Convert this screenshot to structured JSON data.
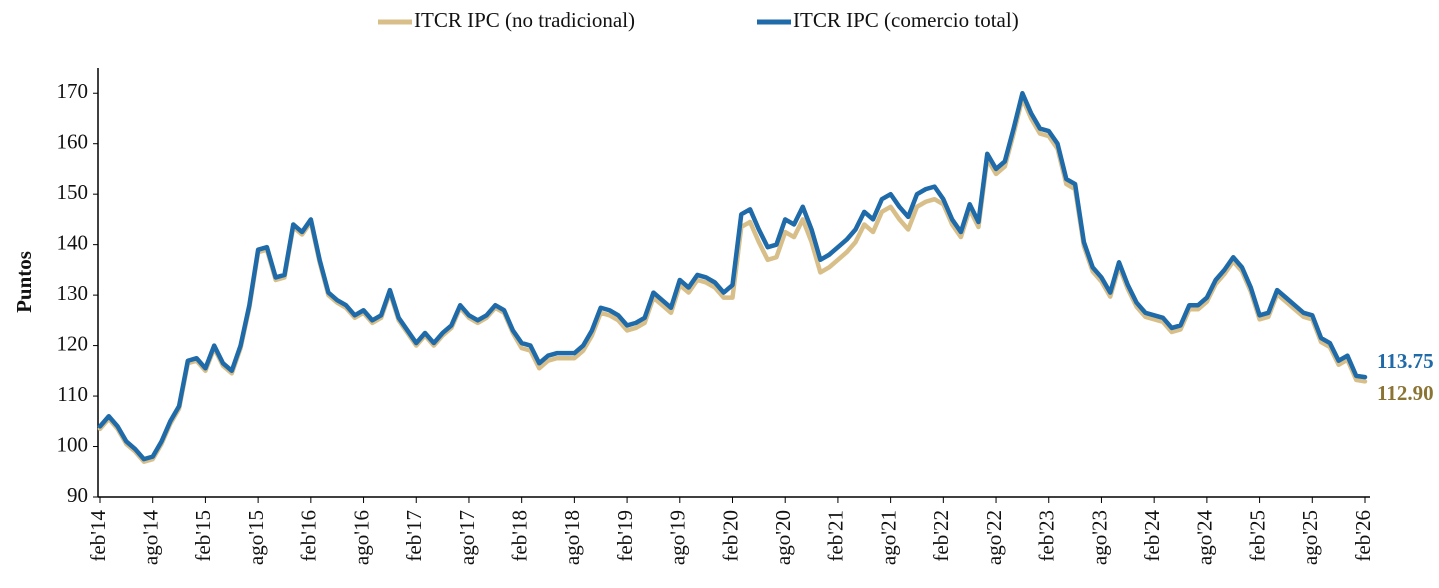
{
  "chart_data": {
    "type": "line",
    "y_label": "Puntos",
    "categories": [
      "feb'14",
      null,
      null,
      null,
      null,
      null,
      "ago'14",
      null,
      null,
      null,
      null,
      null,
      "feb'15",
      null,
      null,
      null,
      null,
      null,
      "ago'15",
      null,
      null,
      null,
      null,
      null,
      "feb'16",
      null,
      null,
      null,
      null,
      null,
      "ago'16",
      null,
      null,
      null,
      null,
      null,
      "feb'17",
      null,
      null,
      null,
      null,
      null,
      "ago'17",
      null,
      null,
      null,
      null,
      null,
      "feb'18",
      null,
      null,
      null,
      null,
      null,
      "ago'18",
      null,
      null,
      null,
      null,
      null,
      "feb'19",
      null,
      null,
      null,
      null,
      null,
      "ago'19",
      null,
      null,
      null,
      null,
      null,
      "feb'20",
      null,
      null,
      null,
      null,
      null,
      "ago'20",
      null,
      null,
      null,
      null,
      null,
      "feb'21",
      null,
      null,
      null,
      null,
      null,
      "ago'21",
      null,
      null,
      null,
      null,
      null,
      "feb'22",
      null,
      null,
      null,
      null,
      null,
      "ago'22",
      null,
      null,
      null,
      null,
      null,
      "feb'23",
      null,
      null,
      null,
      null,
      null,
      "ago'23",
      null,
      null,
      null,
      null,
      null,
      "feb'24",
      null,
      null,
      null,
      null,
      null,
      "ago'24",
      null,
      null,
      null,
      null,
      null,
      "feb'25",
      null,
      null,
      null,
      null,
      null,
      "ago'25",
      null,
      null,
      null,
      null,
      null,
      "feb'26"
    ],
    "series": [
      {
        "name": "ITCR IPC (no tradicional)",
        "color": "#d8bf8a",
        "label_color": "#8a7434",
        "values": [
          103.5,
          105.5,
          103.5,
          100.5,
          99,
          97,
          97.5,
          100.5,
          104.5,
          107.5,
          116.5,
          117,
          115,
          119.5,
          116,
          114.5,
          119.5,
          127.5,
          138.5,
          139,
          133,
          133.5,
          143.5,
          142,
          144.5,
          136.5,
          130,
          128.5,
          127.5,
          125.5,
          126.5,
          124.5,
          125.5,
          130.5,
          125,
          122.5,
          120,
          122,
          120,
          122,
          123.5,
          127.5,
          125.5,
          124.5,
          125.5,
          127.5,
          126.5,
          122.5,
          119.5,
          119,
          115.5,
          117,
          117.5,
          117.5,
          117.5,
          119,
          122,
          126.5,
          126,
          125,
          123,
          123.5,
          124.5,
          129.5,
          128,
          126.5,
          132,
          130.5,
          133,
          132.5,
          131.5,
          129.5,
          129.5,
          143.5,
          144.5,
          140.5,
          137,
          137.5,
          142.5,
          141.5,
          145,
          140.5,
          134.5,
          135.5,
          137,
          138.5,
          140.5,
          144,
          142.5,
          146.5,
          147.5,
          145,
          143,
          147.5,
          148.5,
          149,
          148,
          144,
          141.5,
          147,
          143.5,
          157,
          154,
          155.5,
          162,
          169,
          165,
          162,
          161.5,
          159,
          152,
          151,
          139.7,
          134.7,
          132.7,
          129.7,
          135.7,
          131.2,
          127.7,
          125.7,
          125.2,
          124.7,
          122.7,
          123.2,
          127.2,
          127.2,
          128.7,
          132.2,
          134.2,
          136.7,
          134.7,
          130.7,
          125.2,
          125.7,
          130.2,
          128.7,
          127.2,
          125.7,
          125.2,
          120.7,
          119.7,
          116.2,
          117.2,
          113.2,
          112.9
        ],
        "value_labels": [
          null,
          null,
          null,
          null,
          null,
          null,
          null,
          null,
          null,
          null,
          null,
          null,
          null,
          null,
          null,
          null,
          null,
          null,
          null,
          null,
          null,
          null,
          null,
          null,
          null,
          null,
          null,
          null,
          null,
          null,
          null,
          null,
          null,
          null,
          null,
          null,
          null,
          null,
          null,
          null,
          null,
          null,
          null,
          null,
          null,
          null,
          null,
          null,
          null,
          null,
          null,
          null,
          null,
          null,
          null,
          null,
          null,
          null,
          null,
          null,
          null,
          null,
          null,
          null,
          null,
          null,
          null,
          null,
          null,
          null,
          null,
          null,
          null,
          null,
          null,
          null,
          null,
          null,
          null,
          null,
          null,
          null,
          null,
          null,
          null,
          null,
          null,
          null,
          null,
          null,
          null,
          null,
          null,
          null,
          null,
          null,
          null,
          null,
          null,
          null,
          null,
          null,
          null,
          null,
          null,
          null,
          null,
          null,
          null,
          null,
          null,
          null,
          null,
          null,
          null,
          null,
          null,
          null,
          null,
          null,
          null,
          null,
          null,
          null,
          null,
          null,
          null,
          null,
          null,
          null,
          null,
          null,
          null,
          null,
          null,
          null,
          null,
          null,
          null,
          null,
          null,
          null,
          null,
          null,
          "112.90"
        ]
      },
      {
        "name": "ITCR IPC (comercio total)",
        "color": "#1f6aa8",
        "label_color": "#1f6aa8",
        "values": [
          104,
          106,
          104,
          101,
          99.5,
          97.5,
          98,
          101,
          105,
          108,
          117,
          117.5,
          115.5,
          120,
          116.5,
          115,
          120,
          128,
          139,
          139.5,
          133.5,
          134,
          144,
          142.5,
          145,
          137,
          130.5,
          129,
          128,
          126,
          127,
          125,
          126,
          131,
          125.5,
          123,
          120.5,
          122.5,
          120.5,
          122.5,
          124,
          128,
          126,
          125,
          126,
          128,
          127,
          123,
          120.5,
          120,
          116.5,
          118,
          118.5,
          118.5,
          118.5,
          120,
          123,
          127.5,
          127,
          126,
          124,
          124.5,
          125.5,
          130.5,
          129,
          127.5,
          133,
          131.5,
          134,
          133.5,
          132.5,
          130.5,
          132,
          146,
          147,
          143,
          139.5,
          140,
          145,
          144,
          147.5,
          143,
          137,
          138,
          139.5,
          141,
          143,
          146.5,
          145,
          149,
          150,
          147.5,
          145.5,
          150,
          151,
          151.5,
          149,
          145,
          142.5,
          148,
          144.5,
          158,
          155,
          156.5,
          163,
          170,
          166,
          163,
          162.5,
          160,
          153,
          152,
          140.5,
          135.5,
          133.5,
          130.5,
          136.5,
          132,
          128.5,
          126.5,
          126,
          125.5,
          123.5,
          124,
          128,
          128,
          129.5,
          133,
          135,
          137.5,
          135.5,
          131.5,
          126,
          126.5,
          131,
          129.5,
          128,
          126.5,
          126,
          121.5,
          120.5,
          117,
          118,
          114,
          113.75
        ],
        "value_labels": [
          null,
          null,
          null,
          null,
          null,
          null,
          null,
          null,
          null,
          null,
          null,
          null,
          null,
          null,
          null,
          null,
          null,
          null,
          null,
          null,
          null,
          null,
          null,
          null,
          null,
          null,
          null,
          null,
          null,
          null,
          null,
          null,
          null,
          null,
          null,
          null,
          null,
          null,
          null,
          null,
          null,
          null,
          null,
          null,
          null,
          null,
          null,
          null,
          null,
          null,
          null,
          null,
          null,
          null,
          null,
          null,
          null,
          null,
          null,
          null,
          null,
          null,
          null,
          null,
          null,
          null,
          null,
          null,
          null,
          null,
          null,
          null,
          null,
          null,
          null,
          null,
          null,
          null,
          null,
          null,
          null,
          null,
          null,
          null,
          null,
          null,
          null,
          null,
          null,
          null,
          null,
          null,
          null,
          null,
          null,
          null,
          null,
          null,
          null,
          null,
          null,
          null,
          null,
          null,
          null,
          null,
          null,
          null,
          null,
          null,
          null,
          null,
          null,
          null,
          null,
          null,
          null,
          null,
          null,
          null,
          null,
          null,
          null,
          null,
          null,
          null,
          null,
          null,
          null,
          null,
          null,
          null,
          null,
          null,
          null,
          null,
          null,
          null,
          null,
          null,
          null,
          null,
          null,
          null,
          "113.75"
        ]
      }
    ],
    "ylim": [
      90,
      175
    ],
    "yticks": [
      90,
      100,
      110,
      120,
      130,
      140,
      150,
      160,
      170
    ],
    "grid": false,
    "legend": "top"
  }
}
